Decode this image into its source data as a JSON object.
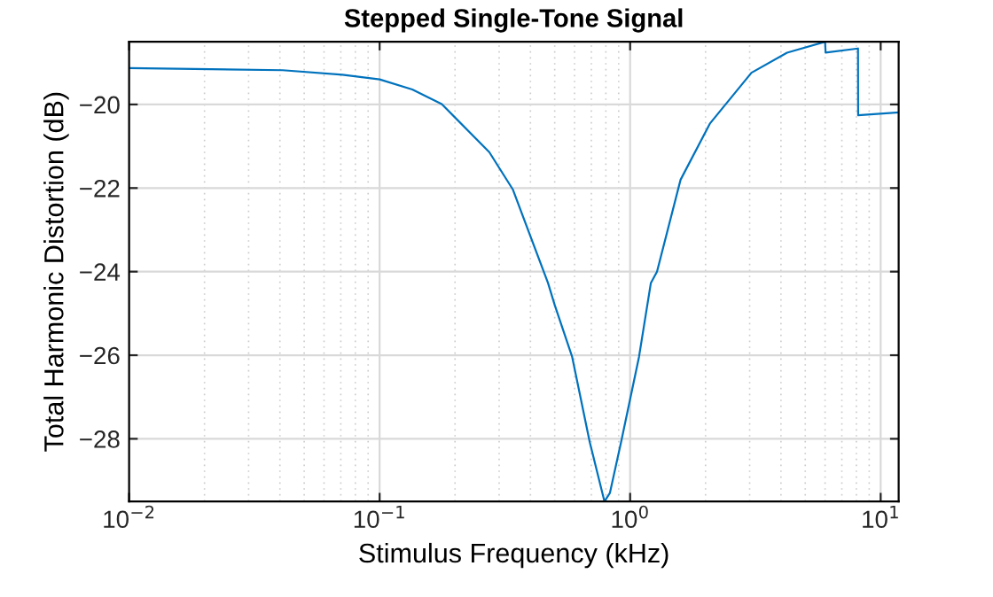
{
  "chart_data": {
    "type": "line",
    "title": "Stepped Single-Tone Signal",
    "xlabel": "Stimulus Frequency (kHz)",
    "ylabel": "Total Harmonic Distortion (dB)",
    "x": [
      0.01,
      0.041,
      0.071,
      0.1,
      0.135,
      0.177,
      0.274,
      0.34,
      0.47,
      0.5,
      0.587,
      0.69,
      0.79,
      0.83,
      0.92,
      1.085,
      1.21,
      1.28,
      1.59,
      2.08,
      3.05,
      4.23,
      6.0,
      6.03,
      8.12,
      8.13,
      11.8
    ],
    "series": [
      {
        "color": "#0072bd",
        "values": [
          -19.13,
          -19.18,
          -19.29,
          -19.4,
          -19.64,
          -19.99,
          -21.14,
          -22.03,
          -24.27,
          -24.8,
          -26.04,
          -28.08,
          -29.5,
          -29.3,
          -28.08,
          -26.04,
          -24.27,
          -24.0,
          -21.8,
          -20.46,
          -19.24,
          -18.76,
          -18.5,
          -18.76,
          -18.66,
          -20.26,
          -20.19
        ]
      }
    ],
    "log": "x",
    "xlim": [
      0.01,
      11.8
    ],
    "ylim": [
      -29.5,
      -18.5
    ],
    "xticks": [
      {
        "value": 0.01,
        "label": "10$^{−2}$"
      },
      {
        "value": 0.1,
        "label": "10$^{−1}$"
      },
      {
        "value": 1,
        "label": "10$^{0}$"
      },
      {
        "value": 10,
        "label": "10$^{1}$"
      }
    ],
    "yticks": [
      -28,
      -26,
      -24,
      -22,
      -20
    ],
    "grid": true,
    "line_style": "solid",
    "marker": "none"
  }
}
